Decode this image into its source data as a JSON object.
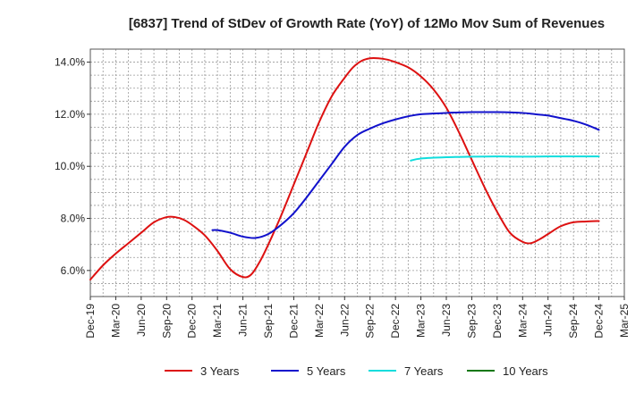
{
  "chart_data": {
    "type": "line",
    "title": "[6837]  Trend of StDev of Growth Rate (YoY) of 12Mo Mov Sum of Revenues",
    "xlabel": "",
    "ylabel": "",
    "x_ticks": [
      "Dec-19",
      "Mar-20",
      "Jun-20",
      "Sep-20",
      "Dec-20",
      "Mar-21",
      "Jun-21",
      "Sep-21",
      "Dec-21",
      "Mar-22",
      "Jun-22",
      "Sep-22",
      "Dec-22",
      "Mar-23",
      "Jun-23",
      "Sep-23",
      "Dec-23",
      "Mar-24",
      "Jun-24",
      "Sep-24",
      "Dec-24",
      "Mar-25"
    ],
    "y_ticks": [
      "6.0%",
      "8.0%",
      "10.0%",
      "12.0%",
      "14.0%"
    ],
    "y_tick_values": [
      6,
      8,
      10,
      12,
      14
    ],
    "ylim": [
      5.0,
      14.5
    ],
    "x_range": [
      0,
      21
    ],
    "grid": true,
    "legend_position": "bottom",
    "series": [
      {
        "name": "3 Years",
        "color": "#dd1111",
        "x": [
          0,
          0.5,
          1,
          1.5,
          2,
          2.5,
          3,
          3.33,
          3.67,
          4,
          4.5,
          5,
          5.5,
          6,
          6.33,
          6.67,
          7,
          7.5,
          8,
          8.5,
          9,
          9.5,
          10,
          10.33,
          10.67,
          11,
          11.33,
          11.67,
          12,
          12.5,
          13,
          13.5,
          14,
          14.5,
          15,
          15.5,
          16,
          16.5,
          17,
          17.33,
          17.67,
          18,
          18.5,
          19,
          19.5,
          20
        ],
        "values": [
          5.65,
          6.2,
          6.65,
          7.05,
          7.45,
          7.85,
          8.05,
          8.05,
          7.95,
          7.75,
          7.35,
          6.75,
          6.05,
          5.75,
          5.85,
          6.35,
          7.0,
          8.1,
          9.3,
          10.5,
          11.7,
          12.7,
          13.4,
          13.8,
          14.05,
          14.15,
          14.15,
          14.1,
          14.0,
          13.8,
          13.45,
          12.95,
          12.25,
          11.3,
          10.25,
          9.2,
          8.25,
          7.45,
          7.1,
          7.05,
          7.2,
          7.4,
          7.7,
          7.85,
          7.88,
          7.9
        ]
      },
      {
        "name": "5 Years",
        "color": "#1111cc",
        "x": [
          4.8,
          5,
          5.5,
          6,
          6.5,
          7,
          7.5,
          8,
          8.5,
          9,
          9.5,
          10,
          10.5,
          11,
          11.5,
          12,
          12.5,
          13,
          14,
          15,
          16,
          17,
          17.5,
          18,
          18.5,
          19,
          19.5,
          20
        ],
        "values": [
          7.55,
          7.55,
          7.45,
          7.3,
          7.25,
          7.4,
          7.75,
          8.2,
          8.8,
          9.45,
          10.1,
          10.75,
          11.2,
          11.45,
          11.65,
          11.8,
          11.92,
          12.0,
          12.05,
          12.08,
          12.08,
          12.05,
          12.0,
          11.95,
          11.85,
          11.75,
          11.6,
          11.4
        ]
      },
      {
        "name": "7 Years",
        "color": "#11dddd",
        "x": [
          12.6,
          13,
          14,
          15,
          16,
          17,
          18,
          19,
          20
        ],
        "values": [
          10.22,
          10.3,
          10.35,
          10.37,
          10.38,
          10.37,
          10.38,
          10.38,
          10.38
        ]
      },
      {
        "name": "10 Years",
        "color": "#117711",
        "x": [],
        "values": []
      }
    ]
  }
}
